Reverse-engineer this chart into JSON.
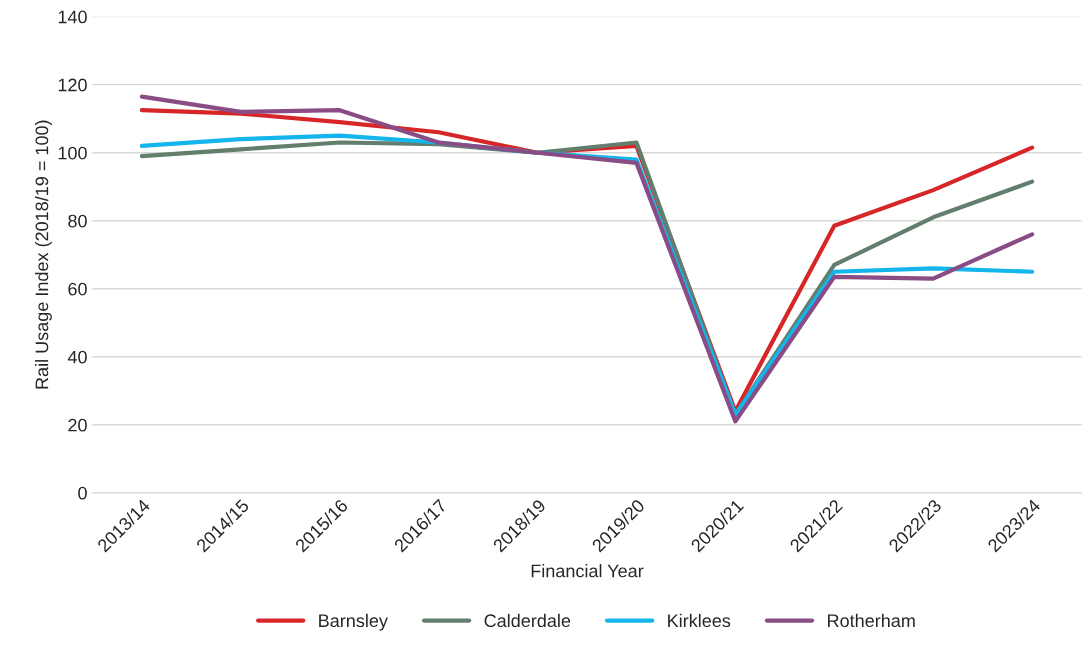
{
  "chart_data": {
    "type": "line",
    "xlabel": "Financial Year",
    "ylabel": "Rail Usage Index (2018/19 = 100)",
    "categories": [
      "2013/14",
      "2014/15",
      "2015/16",
      "2016/17",
      "2018/19",
      "2019/20",
      "2020/21",
      "2021/22",
      "2022/23",
      "2023/24"
    ],
    "series": [
      {
        "name": "Barnsley",
        "color": "#d62628",
        "values": [
          112.5,
          111.5,
          109,
          106,
          100,
          102,
          24,
          78.5,
          89,
          101.5
        ]
      },
      {
        "name": "Calderdale",
        "color": "#627e6c",
        "values": [
          99,
          101,
          103,
          102.5,
          100,
          103,
          23,
          67,
          81,
          91.5
        ]
      },
      {
        "name": "Kirklees",
        "color": "#14b4ec",
        "values": [
          102,
          104,
          105,
          103,
          100,
          98,
          23,
          65,
          66,
          65
        ]
      },
      {
        "name": "Rotherham",
        "color": "#8a4c84",
        "values": [
          116.5,
          112,
          112.5,
          103,
          100,
          97,
          21,
          63.5,
          63,
          76
        ]
      }
    ],
    "ylim": [
      0,
      140
    ],
    "yticks": [
      0,
      20,
      40,
      60,
      80,
      100,
      120,
      140
    ],
    "grid": "y",
    "legend": "bottom",
    "marker": "none",
    "line_style": "solid"
  }
}
